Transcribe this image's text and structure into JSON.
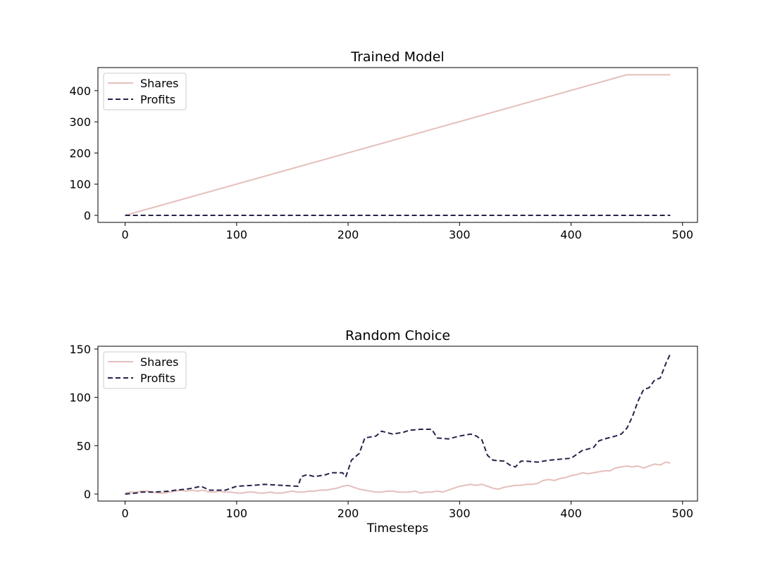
{
  "colors": {
    "shares": "#e5bfbb",
    "profits": "#25234a",
    "axes": "#000000",
    "legend_border": "#cccccc"
  },
  "chart_data": [
    {
      "type": "line",
      "title": "Trained Model",
      "xlabel": "",
      "ylabel": "",
      "xlim": [
        -24.4,
        513.4
      ],
      "ylim": [
        -22.6,
        474.1
      ],
      "xticks": [
        0,
        100,
        200,
        300,
        400,
        500
      ],
      "yticks": [
        0,
        100,
        200,
        300,
        400
      ],
      "grid": false,
      "legend_position": "upper-left",
      "series": [
        {
          "name": "Shares",
          "style": "solid",
          "x": [
            0,
            450,
            451,
            489
          ],
          "y": [
            0,
            451,
            451,
            451
          ]
        },
        {
          "name": "Profits",
          "style": "dashed",
          "x": [
            0,
            489
          ],
          "y": [
            0,
            0
          ]
        }
      ]
    },
    {
      "type": "line",
      "title": "Random Choice",
      "xlabel": "Timesteps",
      "ylabel": "",
      "xlim": [
        -24.4,
        513.4
      ],
      "ylim": [
        -7.3,
        152.9
      ],
      "xticks": [
        0,
        100,
        200,
        300,
        400,
        500
      ],
      "yticks": [
        0,
        50,
        100,
        150
      ],
      "grid": false,
      "legend_position": "upper-left",
      "series": [
        {
          "name": "Shares",
          "style": "solid",
          "x": [
            0,
            5,
            10,
            15,
            20,
            25,
            30,
            35,
            40,
            45,
            50,
            55,
            60,
            65,
            70,
            75,
            80,
            85,
            90,
            95,
            100,
            105,
            110,
            115,
            120,
            125,
            130,
            135,
            140,
            145,
            150,
            155,
            160,
            165,
            170,
            175,
            180,
            185,
            190,
            195,
            200,
            205,
            210,
            215,
            220,
            225,
            230,
            235,
            240,
            245,
            250,
            255,
            260,
            265,
            270,
            275,
            280,
            285,
            290,
            295,
            300,
            305,
            310,
            315,
            320,
            325,
            330,
            335,
            340,
            345,
            350,
            355,
            360,
            365,
            370,
            375,
            380,
            385,
            390,
            395,
            400,
            405,
            410,
            415,
            420,
            425,
            430,
            435,
            440,
            445,
            450,
            455,
            460,
            465,
            470,
            475,
            480,
            485,
            489
          ],
          "y": [
            1,
            2,
            2,
            3,
            3,
            2,
            1,
            1,
            2,
            3,
            4,
            3,
            4,
            3,
            4,
            2,
            2,
            3,
            2,
            2,
            1,
            1,
            2,
            2,
            1,
            1,
            2,
            1,
            1,
            2,
            3,
            2,
            2,
            3,
            3,
            4,
            4,
            5,
            6,
            8,
            9,
            7,
            5,
            4,
            3,
            2,
            2,
            3,
            3,
            2,
            2,
            2,
            3,
            1,
            2,
            2,
            3,
            2,
            4,
            6,
            8,
            9,
            10,
            9,
            10,
            8,
            6,
            5,
            7,
            8,
            9,
            9,
            10,
            10,
            11,
            14,
            15,
            14,
            16,
            17,
            19,
            20,
            22,
            21,
            22,
            23,
            24,
            24,
            27,
            28,
            29,
            28,
            29,
            27,
            29,
            31,
            30,
            33,
            32
          ]
        },
        {
          "name": "Profits",
          "style": "dashed",
          "x": [
            0,
            10,
            15,
            25,
            40,
            45,
            55,
            60,
            68,
            72,
            75,
            80,
            90,
            95,
            100,
            115,
            125,
            140,
            155,
            158,
            163,
            170,
            180,
            185,
            195,
            198,
            203,
            210,
            215,
            225,
            230,
            240,
            250,
            255,
            265,
            275,
            280,
            290,
            300,
            310,
            315,
            320,
            325,
            330,
            340,
            345,
            350,
            355,
            360,
            370,
            380,
            390,
            400,
            410,
            420,
            425,
            430,
            440,
            445,
            450,
            455,
            460,
            465,
            470,
            475,
            480,
            485,
            489
          ],
          "y": [
            0,
            1,
            2,
            2,
            3,
            4,
            5,
            6,
            8,
            6,
            4,
            4,
            4,
            6,
            8,
            9,
            10,
            9,
            8,
            18,
            20,
            18,
            20,
            22,
            22,
            18,
            35,
            42,
            58,
            60,
            65,
            62,
            64,
            66,
            67,
            67,
            58,
            57,
            60,
            62,
            60,
            56,
            40,
            35,
            34,
            30,
            28,
            34,
            34,
            33,
            35,
            36,
            37,
            45,
            48,
            55,
            57,
            60,
            62,
            68,
            80,
            96,
            108,
            110,
            118,
            120,
            135,
            145
          ]
        }
      ]
    }
  ]
}
